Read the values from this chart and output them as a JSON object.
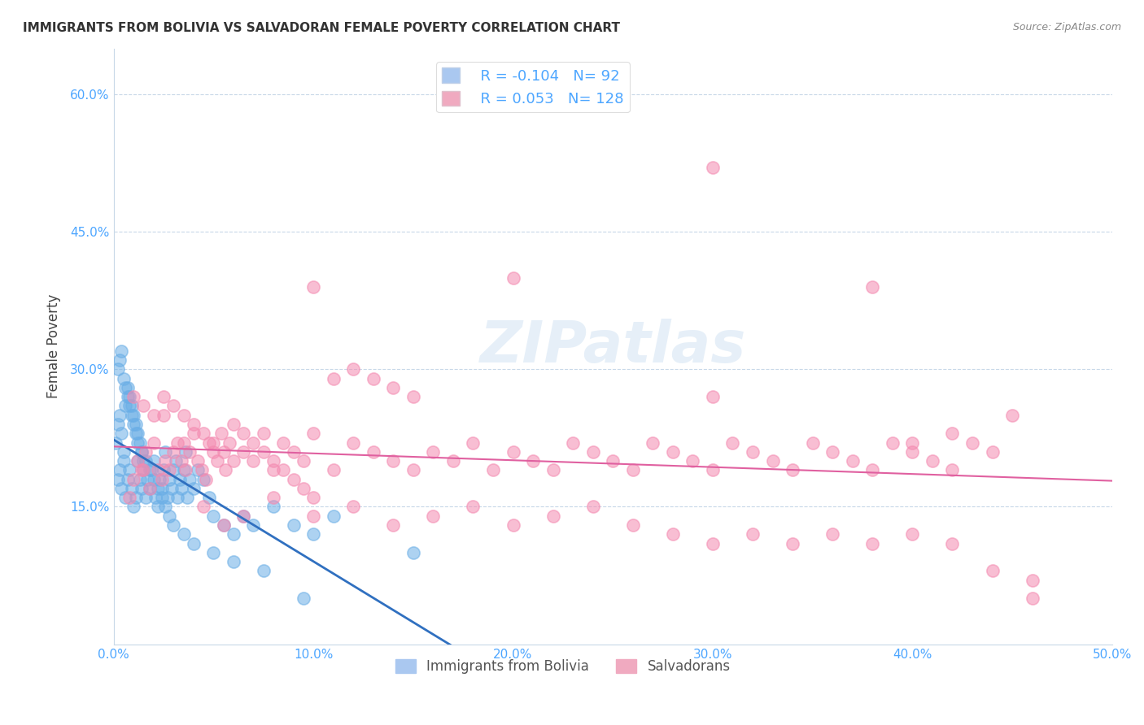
{
  "title": "IMMIGRANTS FROM BOLIVIA VS SALVADORAN FEMALE POVERTY CORRELATION CHART",
  "source": "Source: ZipAtlas.com",
  "xlabel": "",
  "ylabel": "Female Poverty",
  "xlim": [
    0.0,
    0.5
  ],
  "ylim": [
    0.0,
    0.65
  ],
  "xticks": [
    0.0,
    0.1,
    0.2,
    0.3,
    0.4,
    0.5
  ],
  "yticks": [
    0.15,
    0.3,
    0.45,
    0.6
  ],
  "ytick_labels": [
    "15.0%",
    "30.0%",
    "45.0%",
    "60.0%"
  ],
  "xtick_labels": [
    "0.0%",
    "10.0%",
    "20.0%",
    "30.0%",
    "40.0%",
    "50.0%"
  ],
  "bolivia_color": "#6aaee6",
  "salvador_color": "#f48ab0",
  "bolivia_R": -0.104,
  "bolivia_N": 92,
  "salvador_R": 0.053,
  "salvador_N": 128,
  "legend_label_bolivia": "Immigrants from Bolivia",
  "legend_label_salvador": "Salvadorans",
  "watermark": "ZIPatlas",
  "bolivia_scatter_x": [
    0.002,
    0.003,
    0.004,
    0.005,
    0.006,
    0.007,
    0.008,
    0.009,
    0.01,
    0.011,
    0.012,
    0.013,
    0.014,
    0.015,
    0.016,
    0.017,
    0.018,
    0.019,
    0.02,
    0.021,
    0.022,
    0.023,
    0.024,
    0.025,
    0.026,
    0.027,
    0.028,
    0.029,
    0.03,
    0.031,
    0.032,
    0.033,
    0.034,
    0.035,
    0.036,
    0.037,
    0.038,
    0.04,
    0.042,
    0.045,
    0.048,
    0.05,
    0.055,
    0.06,
    0.065,
    0.07,
    0.08,
    0.09,
    0.1,
    0.11,
    0.001,
    0.002,
    0.003,
    0.004,
    0.005,
    0.006,
    0.007,
    0.008,
    0.009,
    0.01,
    0.011,
    0.012,
    0.013,
    0.014,
    0.015,
    0.002,
    0.003,
    0.004,
    0.005,
    0.006,
    0.007,
    0.008,
    0.009,
    0.01,
    0.011,
    0.012,
    0.014,
    0.016,
    0.018,
    0.02,
    0.022,
    0.024,
    0.026,
    0.028,
    0.03,
    0.035,
    0.04,
    0.05,
    0.06,
    0.075,
    0.095,
    0.15
  ],
  "bolivia_scatter_y": [
    0.18,
    0.19,
    0.17,
    0.2,
    0.16,
    0.18,
    0.19,
    0.17,
    0.15,
    0.16,
    0.2,
    0.18,
    0.17,
    0.19,
    0.16,
    0.18,
    0.17,
    0.19,
    0.2,
    0.16,
    0.15,
    0.18,
    0.17,
    0.19,
    0.21,
    0.16,
    0.18,
    0.17,
    0.19,
    0.2,
    0.16,
    0.18,
    0.17,
    0.19,
    0.21,
    0.16,
    0.18,
    0.17,
    0.19,
    0.18,
    0.16,
    0.14,
    0.13,
    0.12,
    0.14,
    0.13,
    0.15,
    0.13,
    0.12,
    0.14,
    0.22,
    0.24,
    0.25,
    0.23,
    0.21,
    0.26,
    0.28,
    0.27,
    0.26,
    0.25,
    0.24,
    0.23,
    0.22,
    0.21,
    0.2,
    0.3,
    0.31,
    0.32,
    0.29,
    0.28,
    0.27,
    0.26,
    0.25,
    0.24,
    0.23,
    0.22,
    0.21,
    0.2,
    0.19,
    0.18,
    0.17,
    0.16,
    0.15,
    0.14,
    0.13,
    0.12,
    0.11,
    0.1,
    0.09,
    0.08,
    0.05,
    0.1
  ],
  "salvador_scatter_x": [
    0.01,
    0.012,
    0.014,
    0.016,
    0.018,
    0.02,
    0.022,
    0.024,
    0.026,
    0.028,
    0.03,
    0.032,
    0.034,
    0.036,
    0.038,
    0.04,
    0.042,
    0.044,
    0.046,
    0.048,
    0.05,
    0.052,
    0.054,
    0.056,
    0.058,
    0.06,
    0.065,
    0.07,
    0.075,
    0.08,
    0.085,
    0.09,
    0.095,
    0.1,
    0.11,
    0.12,
    0.13,
    0.14,
    0.15,
    0.16,
    0.17,
    0.18,
    0.19,
    0.2,
    0.21,
    0.22,
    0.23,
    0.24,
    0.25,
    0.26,
    0.27,
    0.28,
    0.29,
    0.3,
    0.31,
    0.32,
    0.33,
    0.34,
    0.35,
    0.36,
    0.37,
    0.38,
    0.39,
    0.4,
    0.41,
    0.42,
    0.43,
    0.44,
    0.45,
    0.46,
    0.008,
    0.015,
    0.025,
    0.035,
    0.045,
    0.055,
    0.065,
    0.08,
    0.1,
    0.12,
    0.14,
    0.16,
    0.18,
    0.2,
    0.22,
    0.24,
    0.26,
    0.28,
    0.3,
    0.32,
    0.34,
    0.36,
    0.38,
    0.4,
    0.42,
    0.44,
    0.3,
    0.38,
    0.42,
    0.46,
    0.1,
    0.2,
    0.3,
    0.4,
    0.01,
    0.015,
    0.02,
    0.025,
    0.03,
    0.035,
    0.04,
    0.045,
    0.05,
    0.055,
    0.06,
    0.065,
    0.07,
    0.075,
    0.08,
    0.085,
    0.09,
    0.095,
    0.1,
    0.11,
    0.12,
    0.13,
    0.14,
    0.15
  ],
  "salvador_scatter_y": [
    0.18,
    0.2,
    0.19,
    0.21,
    0.17,
    0.22,
    0.19,
    0.18,
    0.2,
    0.19,
    0.21,
    0.22,
    0.2,
    0.19,
    0.21,
    0.23,
    0.2,
    0.19,
    0.18,
    0.22,
    0.21,
    0.2,
    0.23,
    0.19,
    0.22,
    0.24,
    0.21,
    0.2,
    0.23,
    0.19,
    0.22,
    0.21,
    0.2,
    0.23,
    0.19,
    0.22,
    0.21,
    0.2,
    0.19,
    0.21,
    0.2,
    0.22,
    0.19,
    0.21,
    0.2,
    0.19,
    0.22,
    0.21,
    0.2,
    0.19,
    0.22,
    0.21,
    0.2,
    0.19,
    0.22,
    0.21,
    0.2,
    0.19,
    0.22,
    0.21,
    0.2,
    0.19,
    0.22,
    0.21,
    0.2,
    0.19,
    0.22,
    0.21,
    0.25,
    0.07,
    0.16,
    0.19,
    0.25,
    0.22,
    0.15,
    0.13,
    0.14,
    0.16,
    0.14,
    0.15,
    0.13,
    0.14,
    0.15,
    0.13,
    0.14,
    0.15,
    0.13,
    0.12,
    0.11,
    0.12,
    0.11,
    0.12,
    0.11,
    0.12,
    0.11,
    0.08,
    0.52,
    0.39,
    0.23,
    0.05,
    0.39,
    0.4,
    0.27,
    0.22,
    0.27,
    0.26,
    0.25,
    0.27,
    0.26,
    0.25,
    0.24,
    0.23,
    0.22,
    0.21,
    0.2,
    0.23,
    0.22,
    0.21,
    0.2,
    0.19,
    0.18,
    0.17,
    0.16,
    0.29,
    0.3,
    0.29,
    0.28,
    0.27
  ]
}
